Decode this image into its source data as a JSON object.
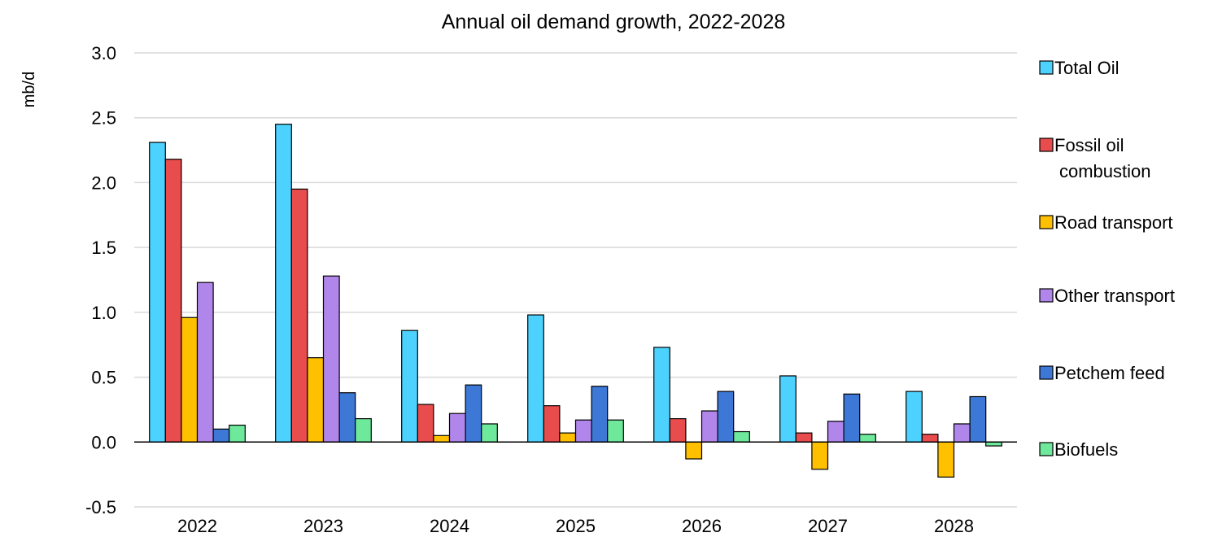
{
  "chart_data": {
    "type": "bar",
    "title": "Annual oil demand growth, 2022-2028",
    "ylabel": "mb/d",
    "xlabel": "",
    "ylim": [
      -0.5,
      3.0
    ],
    "yticks": [
      "3.0",
      "2.5",
      "2.0",
      "1.5",
      "1.0",
      "0.5",
      "0.0",
      "-0.5"
    ],
    "ytick_values": [
      3.0,
      2.5,
      2.0,
      1.5,
      1.0,
      0.5,
      0.0,
      -0.5
    ],
    "grid": true,
    "legend_position": "right",
    "categories": [
      "2022",
      "2023",
      "2024",
      "2025",
      "2026",
      "2027",
      "2028"
    ],
    "series": [
      {
        "name": "Total Oil",
        "color": "#4dd2ff",
        "values": [
          2.31,
          2.45,
          0.86,
          0.98,
          0.73,
          0.51,
          0.39
        ]
      },
      {
        "name": "Fossil oil combustion",
        "color": "#e84c4c",
        "values": [
          2.18,
          1.95,
          0.29,
          0.28,
          0.18,
          0.07,
          0.06
        ]
      },
      {
        "name": "Road transport",
        "color": "#ffc000",
        "values": [
          0.96,
          0.65,
          0.05,
          0.07,
          -0.13,
          -0.21,
          -0.27
        ]
      },
      {
        "name": "Other transport",
        "color": "#b086ea",
        "values": [
          1.23,
          1.28,
          0.22,
          0.17,
          0.24,
          0.16,
          0.14
        ]
      },
      {
        "name": "Petchem feed",
        "color": "#3d78d6",
        "values": [
          0.1,
          0.38,
          0.44,
          0.43,
          0.39,
          0.37,
          0.35
        ]
      },
      {
        "name": "Biofuels",
        "color": "#6ee89a",
        "values": [
          0.13,
          0.18,
          0.14,
          0.17,
          0.08,
          0.06,
          -0.03
        ]
      }
    ]
  }
}
